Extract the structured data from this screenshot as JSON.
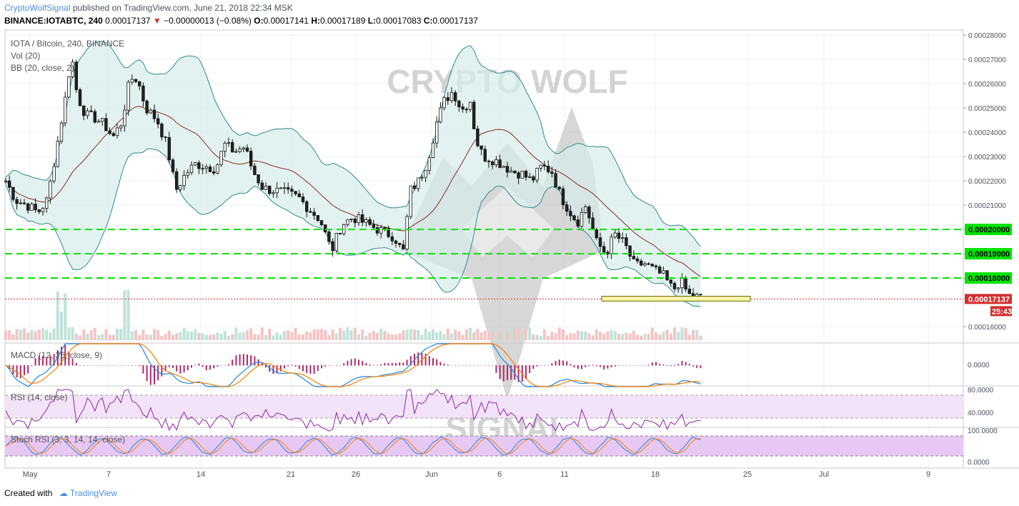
{
  "header": {
    "user": "CryptoWolfSignal",
    "published": " published on TradingView.com, June 21, 2018 22:34 MSK",
    "symbol_line": "BINANCE:IOTABTC, 240",
    "last": "0.00017137",
    "change": "−0.00000013 (−0.08%)",
    "o_label": "O:",
    "o": "0.00017141",
    "h_label": "H:",
    "h": "0.00017189",
    "l_label": "L:",
    "l": "0.00017083",
    "c_label": "C:",
    "c": "0.00017137"
  },
  "legends": {
    "main": "IOTA / Bitcoin, 240, BINANCE",
    "vol": "Vol (20)",
    "bb": "BB (20, close, 2)",
    "macd": "MACD (12, 26, close, 9)",
    "rsi": "RSI (14, close)",
    "stoch": "Stoch RSI (3, 3, 14, 14, close)"
  },
  "watermark": {
    "top": "CRYPTO WOLF",
    "bottom": "SIGNAL"
  },
  "footer": {
    "created": "Created with",
    "brand": "TradingView"
  },
  "countdown": "25:43",
  "colors": {
    "up": "#26a69a",
    "down": "#ef5350",
    "candle": "#111111",
    "bb_fill": "#d6ece9",
    "bb_line": "#2e8b8b",
    "ma": "#8b2a1a",
    "level": "#00e400",
    "macd": "#1e88e5",
    "signal": "#ff7f00",
    "rsi": "#8e24aa",
    "rsi_band": "#f3e3f8",
    "stoch_k": "#1e88e5",
    "stoch_d": "#ff7f00",
    "stoch_band": "#e7c8f3",
    "last_price": "#d32f2f"
  },
  "chart_data": {
    "type": "candlestick",
    "symbol": "IOTA / Bitcoin",
    "timeframe": "240",
    "exchange": "BINANCE",
    "x_ticks": [
      "May",
      "7",
      "14",
      "21",
      "26",
      "Jun",
      "6",
      "11",
      "18",
      "25",
      "Jul",
      "9"
    ],
    "price_ticks": [
      "0.00028000",
      "0.00027000",
      "0.00026000",
      "0.00025000",
      "0.00024000",
      "0.00023000",
      "0.00022000",
      "0.00021000",
      "0.00020000",
      "0.00019000",
      "0.00018000",
      "0.00016000"
    ],
    "ylim": [
      0.000155,
      0.000282
    ],
    "horizontal_levels": [
      "0.00020000",
      "0.00019000",
      "0.00018000"
    ],
    "last_price": "0.00017137",
    "support_zone": [
      0.0001705,
      0.0001725
    ],
    "macd_ticks": [
      "0.0000"
    ],
    "rsi_ticks": [
      "80.0000",
      "40.0000"
    ],
    "stoch_ticks": [
      "100.0000",
      "0.0000"
    ],
    "price_path": [
      [
        0,
        0.00022
      ],
      [
        14,
        0.000212
      ],
      [
        30,
        0.00021
      ],
      [
        45,
        0.000207
      ],
      [
        58,
        0.000212
      ],
      [
        72,
        0.000235
      ],
      [
        84,
        0.000255
      ],
      [
        92,
        0.000272
      ],
      [
        100,
        0.000255
      ],
      [
        112,
        0.000247
      ],
      [
        124,
        0.000246
      ],
      [
        138,
        0.000243
      ],
      [
        150,
        0.000238
      ],
      [
        162,
        0.000244
      ],
      [
        174,
        0.000262
      ],
      [
        184,
        0.000262
      ],
      [
        196,
        0.00025
      ],
      [
        212,
        0.000245
      ],
      [
        226,
        0.000234
      ],
      [
        238,
        0.000216
      ],
      [
        252,
        0.000223
      ],
      [
        266,
        0.000227
      ],
      [
        280,
        0.000226
      ],
      [
        294,
        0.000225
      ],
      [
        306,
        0.000235
      ],
      [
        320,
        0.000232
      ],
      [
        334,
        0.000234
      ],
      [
        346,
        0.000224
      ],
      [
        360,
        0.000217
      ],
      [
        376,
        0.000216
      ],
      [
        392,
        0.000215
      ],
      [
        410,
        0.000213
      ],
      [
        426,
        0.000208
      ],
      [
        440,
        0.000204
      ],
      [
        456,
        0.000191
      ],
      [
        470,
        0.000202
      ],
      [
        486,
        0.000205
      ],
      [
        500,
        0.000203
      ],
      [
        514,
        0.000201
      ],
      [
        528,
        0.000199
      ],
      [
        544,
        0.000197
      ],
      [
        556,
        0.00019
      ],
      [
        566,
        0.000216
      ],
      [
        578,
        0.00022
      ],
      [
        590,
        0.000228
      ],
      [
        604,
        0.000245
      ],
      [
        614,
        0.000253
      ],
      [
        626,
        0.000257
      ],
      [
        638,
        0.000249
      ],
      [
        650,
        0.000253
      ],
      [
        658,
        0.000237
      ],
      [
        668,
        0.00023
      ],
      [
        680,
        0.000229
      ],
      [
        694,
        0.000227
      ],
      [
        708,
        0.000224
      ],
      [
        722,
        0.000223
      ],
      [
        736,
        0.00022
      ],
      [
        750,
        0.000226
      ],
      [
        764,
        0.000224
      ],
      [
        776,
        0.000214
      ],
      [
        788,
        0.000208
      ],
      [
        800,
        0.000203
      ],
      [
        812,
        0.00021
      ],
      [
        826,
        0.000195
      ],
      [
        840,
        0.00019
      ],
      [
        852,
        0.000198
      ],
      [
        866,
        0.000194
      ],
      [
        880,
        0.000185
      ],
      [
        894,
        0.000186
      ],
      [
        908,
        0.000183
      ],
      [
        920,
        0.000181
      ],
      [
        934,
        0.000175
      ],
      [
        944,
        0.000179
      ],
      [
        956,
        0.000173
      ],
      [
        970,
        0.000172
      ],
      [
        984,
        0.000171
      ]
    ]
  }
}
